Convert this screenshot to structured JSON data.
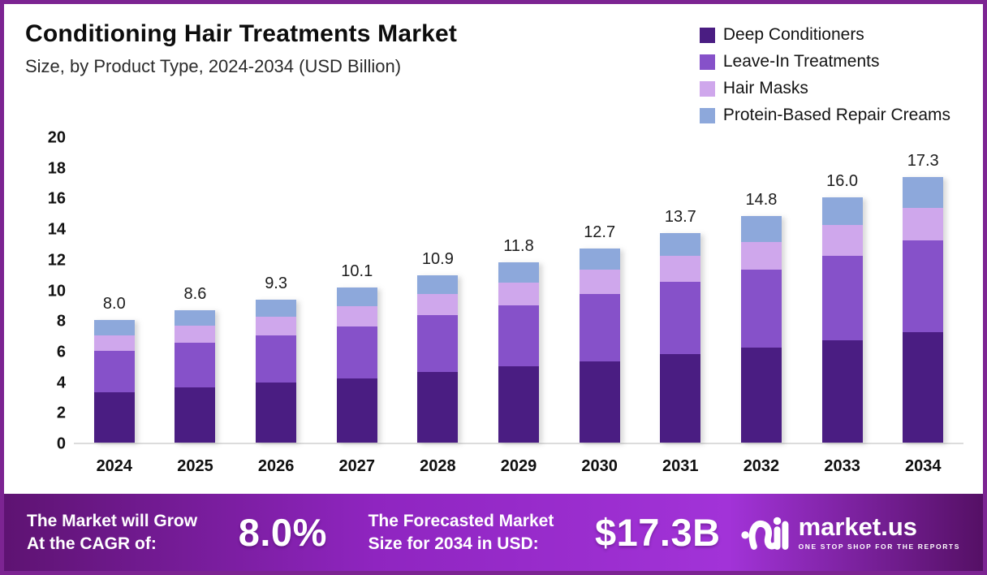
{
  "header": {
    "title": "Conditioning Hair Treatments Market",
    "subtitle": "Size, by Product Type, 2024-2034 (USD Billion)"
  },
  "chart_data": {
    "type": "bar",
    "stacked": true,
    "title": "Conditioning Hair Treatments Market Size, by Product Type, 2024-2034 (USD Billion)",
    "categories": [
      "2024",
      "2025",
      "2026",
      "2027",
      "2028",
      "2029",
      "2030",
      "2031",
      "2032",
      "2033",
      "2034"
    ],
    "series": [
      {
        "name": "Deep Conditioners",
        "color": "#4A1D82",
        "values": [
          3.3,
          3.6,
          3.9,
          4.2,
          4.6,
          5.0,
          5.3,
          5.8,
          6.2,
          6.7,
          7.2
        ]
      },
      {
        "name": "Leave-In Treatments",
        "color": "#8651C9",
        "values": [
          2.7,
          2.9,
          3.1,
          3.4,
          3.7,
          4.0,
          4.4,
          4.7,
          5.1,
          5.5,
          6.0
        ]
      },
      {
        "name": "Hair Masks",
        "color": "#CFA7EC",
        "values": [
          1.0,
          1.1,
          1.2,
          1.3,
          1.4,
          1.5,
          1.6,
          1.7,
          1.8,
          2.0,
          2.1
        ]
      },
      {
        "name": "Protein-Based Repair Creams",
        "color": "#8DA8DB",
        "values": [
          1.0,
          1.0,
          1.1,
          1.2,
          1.2,
          1.3,
          1.4,
          1.5,
          1.7,
          1.8,
          2.0
        ]
      }
    ],
    "totals": [
      "8.0",
      "8.6",
      "9.3",
      "10.1",
      "10.9",
      "11.8",
      "12.7",
      "13.7",
      "14.8",
      "16.0",
      "17.3"
    ],
    "xlabel": "",
    "ylabel": "",
    "ylim": [
      0,
      20
    ],
    "yticks": [
      0,
      2,
      4,
      6,
      8,
      10,
      12,
      14,
      16,
      18,
      20
    ],
    "grid": false,
    "legend_position": "top-right"
  },
  "footer": {
    "cagr_label_line1": "The Market will Grow",
    "cagr_label_line2": "At the CAGR of:",
    "cagr_value": "8.0%",
    "forecast_label_line1": "The Forecasted Market",
    "forecast_label_line2": "Size for 2034 in USD:",
    "forecast_value": "$17.3B",
    "brand_name": "market.us",
    "brand_tagline": "ONE STOP SHOP FOR THE REPORTS"
  },
  "colors": {
    "page_border": "#7C2492",
    "axis_line": "#dcdcdc",
    "footer_gradient_left": "#5E1372",
    "footer_gradient_mid": "#A233D8",
    "footer_gradient_right": "#551065"
  }
}
